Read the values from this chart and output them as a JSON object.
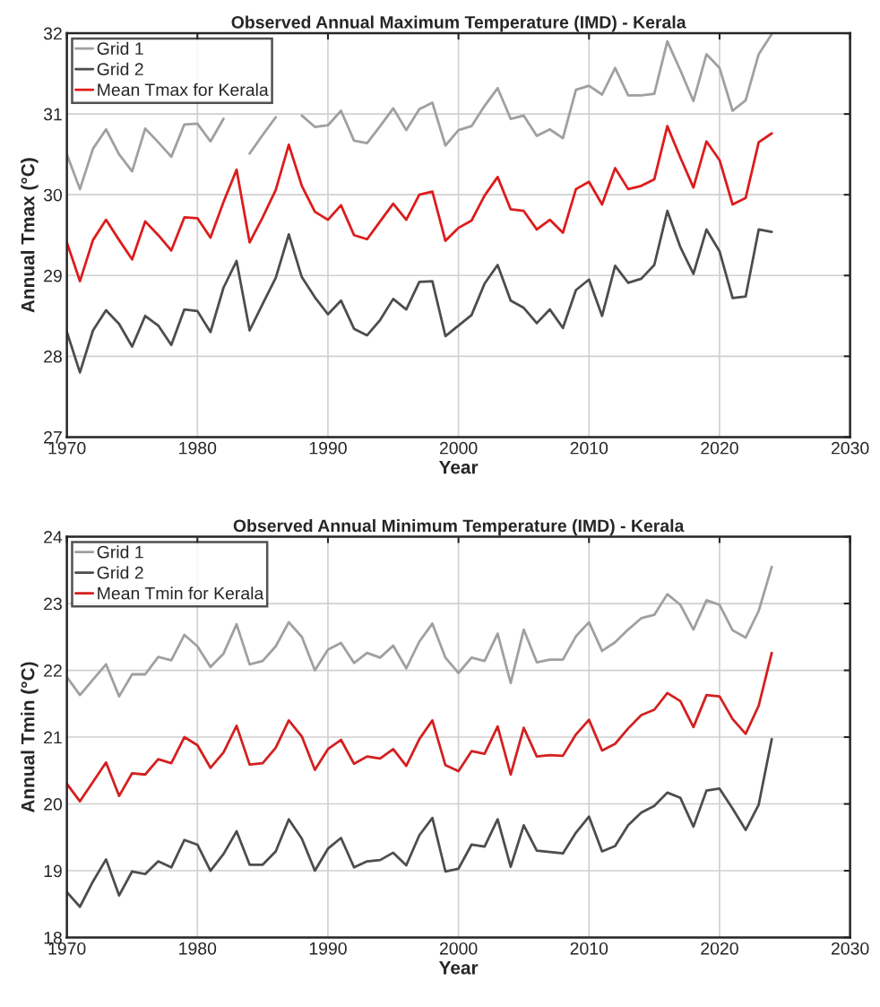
{
  "chart_data": [
    {
      "type": "line",
      "title": "Observed Annual Maximum Temperature (IMD) - Kerala",
      "xlabel": "Year",
      "ylabel": "Annual Tmax (°C)",
      "x": [
        1970,
        1971,
        1972,
        1973,
        1974,
        1975,
        1976,
        1977,
        1978,
        1979,
        1980,
        1981,
        1982,
        1983,
        1984,
        1985,
        1986,
        1987,
        1988,
        1989,
        1990,
        1991,
        1992,
        1993,
        1994,
        1995,
        1996,
        1997,
        1998,
        1999,
        2000,
        2001,
        2002,
        2003,
        2004,
        2005,
        2006,
        2007,
        2008,
        2009,
        2010,
        2011,
        2012,
        2013,
        2014,
        2015,
        2016,
        2017,
        2018,
        2019,
        2020,
        2021,
        2022,
        2023,
        2024
      ],
      "series": [
        {
          "name": "Grid 1",
          "color": "#a0a0a0",
          "values": [
            30.5,
            30.07,
            30.57,
            30.81,
            30.5,
            30.29,
            30.82,
            30.65,
            30.47,
            30.87,
            30.88,
            30.66,
            30.94,
            null,
            30.51,
            30.74,
            30.96,
            null,
            30.98,
            30.84,
            30.86,
            31.04,
            30.67,
            30.64,
            30.85,
            31.07,
            30.8,
            31.06,
            31.14,
            30.61,
            30.8,
            30.85,
            31.1,
            31.32,
            30.94,
            30.98,
            30.73,
            30.81,
            30.7,
            31.3,
            31.35,
            31.24,
            31.57,
            31.23,
            31.23,
            31.25,
            31.9,
            31.54,
            31.16,
            31.74,
            31.57,
            31.04,
            31.17,
            31.74,
            31.99
          ]
        },
        {
          "name": "Grid 2",
          "color": "#4d4d4d",
          "values": [
            28.3,
            27.8,
            28.32,
            28.57,
            28.4,
            28.12,
            28.5,
            28.38,
            28.14,
            28.58,
            28.56,
            28.3,
            28.85,
            29.18,
            28.32,
            28.65,
            28.97,
            29.51,
            28.98,
            28.73,
            28.52,
            28.69,
            28.34,
            28.26,
            28.45,
            28.71,
            28.58,
            28.92,
            28.93,
            28.25,
            28.38,
            28.51,
            28.9,
            29.13,
            28.69,
            28.6,
            28.41,
            28.58,
            28.35,
            28.82,
            28.95,
            28.5,
            29.12,
            28.91,
            28.96,
            29.13,
            29.8,
            29.35,
            29.02,
            29.57,
            29.3,
            28.72,
            28.74,
            29.57,
            29.54
          ]
        },
        {
          "name": "Mean Tmax for Kerala",
          "color": "#dd1c1c",
          "values": [
            29.41,
            28.93,
            29.44,
            29.69,
            29.44,
            29.2,
            29.67,
            29.5,
            29.31,
            29.72,
            29.71,
            29.47,
            29.91,
            30.31,
            29.41,
            29.72,
            30.06,
            30.62,
            30.11,
            29.79,
            29.69,
            29.87,
            29.5,
            29.45,
            29.67,
            29.89,
            29.69,
            30.0,
            30.04,
            29.43,
            29.59,
            29.68,
            29.99,
            30.22,
            29.82,
            29.8,
            29.57,
            29.69,
            29.53,
            30.07,
            30.16,
            29.88,
            30.33,
            30.07,
            30.11,
            30.19,
            30.85,
            30.46,
            30.09,
            30.66,
            30.43,
            29.88,
            29.96,
            30.65,
            30.76
          ]
        }
      ],
      "xlim": [
        1970,
        2030
      ],
      "xticks": [
        1970,
        1980,
        1990,
        2000,
        2010,
        2020,
        2030
      ],
      "ylim": [
        27,
        32
      ],
      "yticks": [
        27,
        28,
        29,
        30,
        31,
        32
      ],
      "grid": true,
      "legend": "top left",
      "line_style": "solid",
      "marker": "none"
    },
    {
      "type": "line",
      "title": "Observed Annual Minimum Temperature (IMD) - Kerala",
      "xlabel": "Year",
      "ylabel": "Annual Tmin (°C)",
      "x": [
        1970,
        1971,
        1972,
        1973,
        1974,
        1975,
        1976,
        1977,
        1978,
        1979,
        1980,
        1981,
        1982,
        1983,
        1984,
        1985,
        1986,
        1987,
        1988,
        1989,
        1990,
        1991,
        1992,
        1993,
        1994,
        1995,
        1996,
        1997,
        1998,
        1999,
        2000,
        2001,
        2002,
        2003,
        2004,
        2005,
        2006,
        2007,
        2008,
        2009,
        2010,
        2011,
        2012,
        2013,
        2014,
        2015,
        2016,
        2017,
        2018,
        2019,
        2020,
        2021,
        2022,
        2023,
        2024
      ],
      "series": [
        {
          "name": "Grid 1",
          "color": "#a0a0a0",
          "values": [
            21.9,
            21.63,
            21.86,
            22.09,
            21.61,
            21.94,
            21.94,
            22.2,
            22.15,
            22.53,
            22.36,
            22.05,
            22.25,
            22.69,
            22.09,
            22.14,
            22.36,
            22.72,
            22.5,
            22.0,
            22.31,
            22.41,
            22.11,
            22.26,
            22.19,
            22.37,
            22.03,
            22.43,
            22.7,
            22.19,
            21.96,
            22.19,
            22.14,
            22.55,
            21.81,
            22.61,
            22.12,
            22.16,
            22.16,
            22.51,
            22.72,
            22.29,
            22.42,
            22.61,
            22.78,
            22.83,
            23.14,
            22.98,
            22.61,
            23.05,
            22.98,
            22.6,
            22.49,
            22.89,
            23.55
          ]
        },
        {
          "name": "Grid 2",
          "color": "#4d4d4d",
          "values": [
            18.68,
            18.46,
            18.84,
            19.17,
            18.63,
            18.99,
            18.95,
            19.14,
            19.05,
            19.46,
            19.39,
            19.0,
            19.25,
            19.59,
            19.09,
            19.09,
            19.29,
            19.77,
            19.48,
            19.0,
            19.33,
            19.49,
            19.05,
            19.14,
            19.16,
            19.27,
            19.08,
            19.53,
            19.79,
            18.99,
            19.03,
            19.39,
            19.36,
            19.77,
            19.06,
            19.68,
            19.3,
            19.28,
            19.26,
            19.57,
            19.81,
            19.29,
            19.37,
            19.68,
            19.87,
            19.97,
            20.17,
            20.09,
            19.66,
            20.2,
            20.23,
            19.93,
            19.61,
            19.99,
            20.97
          ]
        },
        {
          "name": "Mean Tmin for Kerala",
          "color": "#d42020",
          "values": [
            20.3,
            20.04,
            20.33,
            20.62,
            20.12,
            20.46,
            20.44,
            20.67,
            20.61,
            21.0,
            20.88,
            20.54,
            20.77,
            21.17,
            20.59,
            20.61,
            20.84,
            21.25,
            21.01,
            20.51,
            20.82,
            20.96,
            20.6,
            20.71,
            20.68,
            20.82,
            20.57,
            20.97,
            21.25,
            20.58,
            20.49,
            20.79,
            20.75,
            21.16,
            20.44,
            21.14,
            20.71,
            20.73,
            20.72,
            21.04,
            21.26,
            20.8,
            20.9,
            21.13,
            21.33,
            21.41,
            21.66,
            21.54,
            21.15,
            21.63,
            21.61,
            21.27,
            21.05,
            21.47,
            22.26
          ]
        }
      ],
      "xlim": [
        1970,
        2030
      ],
      "xticks": [
        1970,
        1980,
        1990,
        2000,
        2010,
        2020,
        2030
      ],
      "ylim": [
        18,
        24
      ],
      "yticks": [
        18,
        19,
        20,
        21,
        22,
        23,
        24
      ],
      "grid": true,
      "legend": "top left",
      "line_style": "solid",
      "marker": "none"
    }
  ]
}
